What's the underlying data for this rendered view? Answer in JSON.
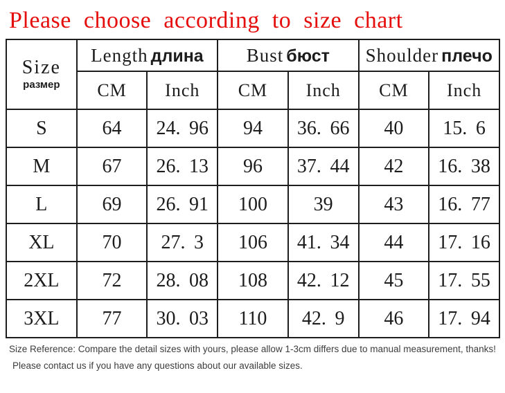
{
  "title": "Please choose according to size chart",
  "table": {
    "size_header": {
      "en": "Size",
      "ru": "размер"
    },
    "groups": [
      {
        "en": "Length",
        "ru": "длина"
      },
      {
        "en": "Bust",
        "ru": "бюст"
      },
      {
        "en": "Shoulder",
        "ru": "плечо"
      }
    ],
    "unit_headers": [
      "CM",
      "Inch",
      "CM",
      "Inch",
      "CM",
      "Inch"
    ],
    "rows": [
      {
        "size": "S",
        "values": [
          "64",
          "24.96",
          "94",
          "36.66",
          "40",
          "15.6"
        ]
      },
      {
        "size": "M",
        "values": [
          "67",
          "26.13",
          "96",
          "37.44",
          "42",
          "16.38"
        ]
      },
      {
        "size": "L",
        "values": [
          "69",
          "26.91",
          "100",
          "39",
          "43",
          "16.77"
        ]
      },
      {
        "size": "XL",
        "values": [
          "70",
          "27.3",
          "106",
          "41.34",
          "44",
          "17.16"
        ]
      },
      {
        "size": "2XL",
        "values": [
          "72",
          "28.08",
          "108",
          "42.12",
          "45",
          "17.55"
        ]
      },
      {
        "size": "3XL",
        "values": [
          "77",
          "30.03",
          "110",
          "42.9",
          "46",
          "17.94"
        ]
      }
    ]
  },
  "footer": {
    "line1": "Size Reference: Compare the detail sizes with yours, please allow 1-3cm differs due to manual measurement, thanks!",
    "line2": "Please contact us if you have any questions about our available sizes."
  },
  "colors": {
    "title_red": "#e60d0d",
    "table_border": "#1d1d1d",
    "table_text": "#1c1c1c",
    "footer_text": "#3c3c3c"
  }
}
